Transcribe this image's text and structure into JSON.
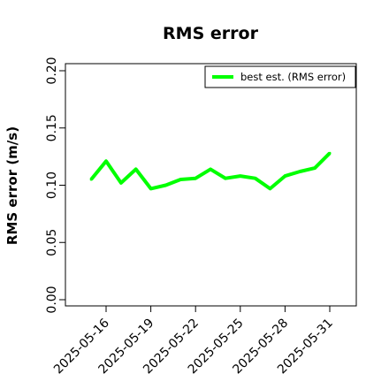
{
  "chart_data": {
    "type": "line",
    "title": "RMS error",
    "xlabel": "",
    "ylabel": "RMS error (m/s)",
    "ylim": [
      0.0,
      0.21
    ],
    "yticks": [
      0.0,
      0.05,
      0.1,
      0.15,
      0.2
    ],
    "ytick_labels": [
      "0.00",
      "0.05",
      "0.10",
      "0.15",
      "0.20"
    ],
    "xlim": [
      "2025-05-14",
      "2025-06-01"
    ],
    "xticks": [
      "2025-05-16",
      "2025-05-19",
      "2025-05-22",
      "2025-05-25",
      "2025-05-28",
      "2025-05-31"
    ],
    "xtick_colors": [
      "#000000",
      "#000000",
      "#228B22",
      "#000000",
      "#000000",
      "#000000"
    ],
    "grid": false,
    "legend": {
      "position": "top-right"
    },
    "series": [
      {
        "name": "best est. (RMS error)",
        "color": "#00ff00",
        "x": [
          "2025-05-15",
          "2025-05-16",
          "2025-05-17",
          "2025-05-18",
          "2025-05-19",
          "2025-05-20",
          "2025-05-21",
          "2025-05-22",
          "2025-05-23",
          "2025-05-24",
          "2025-05-25",
          "2025-05-26",
          "2025-05-27",
          "2025-05-28",
          "2025-05-29",
          "2025-05-30",
          "2025-05-31"
        ],
        "y": [
          0.105,
          0.121,
          0.102,
          0.114,
          0.097,
          0.1,
          0.105,
          0.106,
          0.114,
          0.106,
          0.108,
          0.106,
          0.097,
          0.108,
          0.112,
          0.115,
          0.128
        ]
      }
    ]
  }
}
